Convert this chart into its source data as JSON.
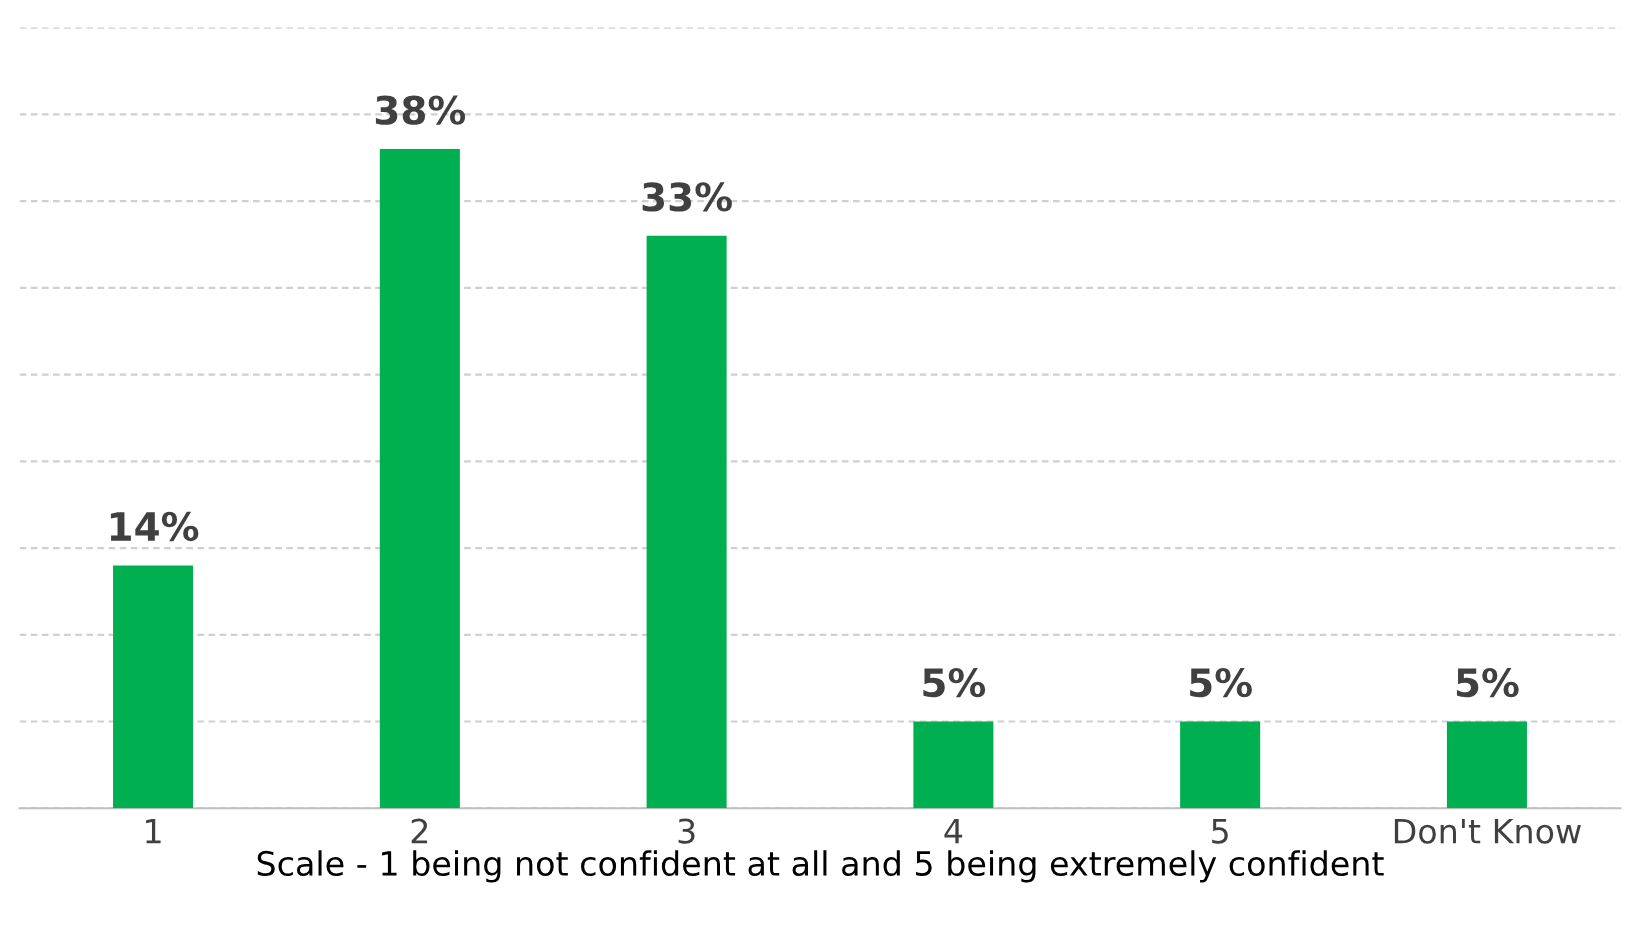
{
  "chart_data": {
    "type": "bar",
    "xlabel": "Scale - 1 being not confident at all and 5 being extremely confident",
    "categories": [
      "1",
      "2",
      "3",
      "4",
      "5",
      "Don't Know"
    ],
    "values": [
      14,
      38,
      33,
      5,
      5,
      5
    ],
    "value_labels": [
      "14%",
      "38%",
      "33%",
      "5%",
      "5%",
      "5%"
    ],
    "color": "#00b050",
    "ylim": [
      0,
      45
    ],
    "yticks": [
      {
        "value": 0,
        "label": null
      },
      {
        "value": 5,
        "label": null
      },
      {
        "value": 10,
        "label": null
      },
      {
        "value": 15,
        "label": null
      },
      {
        "value": 20,
        "label": null
      },
      {
        "value": 25,
        "label": null
      },
      {
        "value": 30,
        "label": null
      },
      {
        "value": 35,
        "label": null
      },
      {
        "value": 40,
        "label": null
      },
      {
        "value": 45,
        "label": null
      }
    ],
    "grid": "y",
    "tick_labels": "x"
  }
}
